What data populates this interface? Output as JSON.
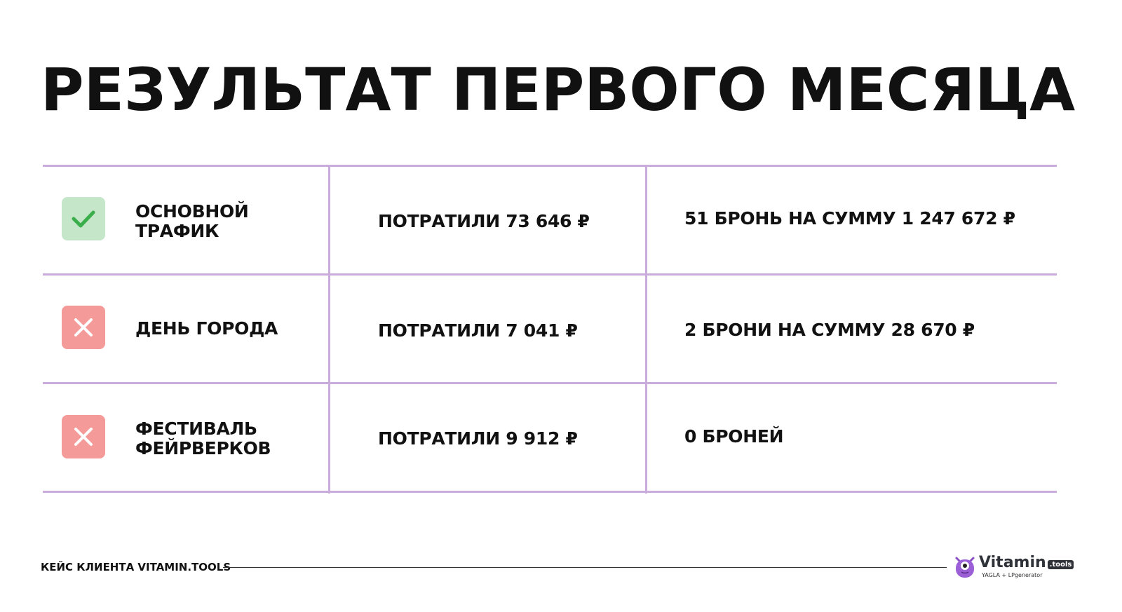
{
  "title": "РЕЗУЛЬТАТ ПЕРВОГО МЕСЯЦА",
  "colors": {
    "grid": "#c9acdc",
    "success_bg": "#c6e6c9",
    "success_mark": "#3aae4a",
    "fail_bg": "#f49a98",
    "fail_mark": "#ffffff"
  },
  "rows": [
    {
      "status": "success",
      "icon": "check-icon",
      "name": "ОСНОВНОЙ ТРАФИК",
      "spent": "ПОТРАТИЛИ 73 646 ₽",
      "result": "51 БРОНЬ НА СУММУ 1 247 672 ₽"
    },
    {
      "status": "fail",
      "icon": "cross-icon",
      "name": "ДЕНЬ ГОРОДА",
      "spent": "ПОТРАТИЛИ 7 041 ₽",
      "result": "2 БРОНИ НА СУММУ 28 670 ₽"
    },
    {
      "status": "fail",
      "icon": "cross-icon",
      "name": "ФЕСТИВАЛЬ ФЕЙРВЕРКОВ",
      "spent": "ПОТРАТИЛИ 9 912 ₽",
      "result": "0 БРОНЕЙ"
    }
  ],
  "footer": {
    "caption": "КЕЙС КЛИЕНТА VITAMIN.TOOLS",
    "logo": {
      "word": "Vitamin",
      "badge": ".tools",
      "sub": "YAGLA + LPgenerator"
    }
  }
}
